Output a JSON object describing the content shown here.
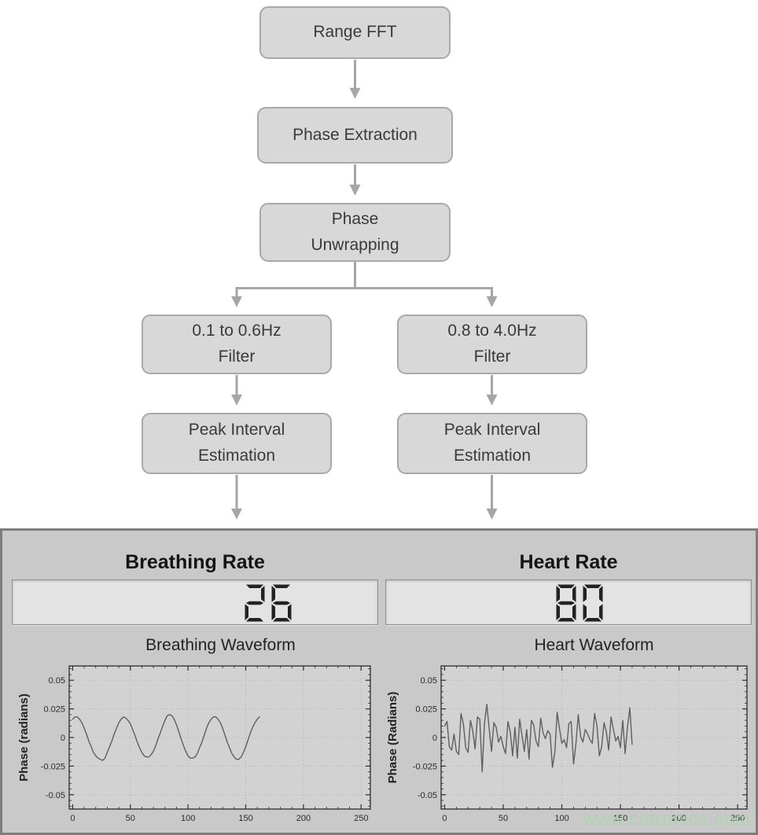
{
  "flowchart": {
    "arrow_color": "#a6a6a6",
    "box_fill": "#d8d8d8",
    "box_border": "#a9a9a9",
    "nodes": [
      {
        "id": "range-fft",
        "label": "Range FFT"
      },
      {
        "id": "phase-extraction",
        "label": "Phase Extraction"
      },
      {
        "id": "phase-unwrapping",
        "label": "Phase\nUnwrapping"
      },
      {
        "id": "breath-filter",
        "label": "0.1 to 0.6Hz\nFilter"
      },
      {
        "id": "heart-filter",
        "label": "0.8 to 4.0Hz\nFilter"
      },
      {
        "id": "breath-peak",
        "label": "Peak Interval\nEstimation"
      },
      {
        "id": "heart-peak",
        "label": "Peak Interval\nEstimation"
      }
    ]
  },
  "panel": {
    "background": "#c9c9c9",
    "border_color": "#7d7d7d",
    "lcd_background": "#e3e3e3",
    "lcd_digit_color": "#222222",
    "columns": [
      {
        "title": "Breathing Rate",
        "display_value": "26"
      },
      {
        "title": "Heart Rate",
        "display_value": "80"
      }
    ]
  },
  "watermark": {
    "text": "www.cntronics.com",
    "color": "#a8d8a8"
  },
  "chart_data": [
    {
      "type": "line",
      "title": "Breathing Waveform",
      "xlabel": "",
      "ylabel": "Phase (radians)",
      "xlim": [
        -3,
        258
      ],
      "ylim": [
        -0.0625,
        0.0625
      ],
      "xticks": [
        0,
        50,
        100,
        150,
        200,
        250
      ],
      "yticks": [
        -0.05,
        -0.025,
        0,
        0.025,
        0.05
      ],
      "ytick_labels": [
        "-0.05",
        "-0.025",
        "0",
        "0.025",
        "0.05"
      ],
      "x_minor_step": 10,
      "y_minor_step": 0.005,
      "grid": "dotted",
      "line_color": "#5f5f5f",
      "x_start": 0,
      "x_step": 2,
      "values": [
        0.016,
        0.018,
        0.018,
        0.016,
        0.013,
        0.008,
        0.003,
        -0.003,
        -0.008,
        -0.013,
        -0.016,
        -0.018,
        -0.019,
        -0.02,
        -0.018,
        -0.013,
        -0.008,
        -0.003,
        0.003,
        0.008,
        0.013,
        0.016,
        0.018,
        0.017,
        0.015,
        0.012,
        0.007,
        0.002,
        -0.004,
        -0.009,
        -0.013,
        -0.016,
        -0.017,
        -0.017,
        -0.015,
        -0.012,
        -0.007,
        -0.001,
        0.004,
        0.01,
        0.015,
        0.019,
        0.02,
        0.019,
        0.016,
        0.011,
        0.005,
        -0.001,
        -0.007,
        -0.012,
        -0.016,
        -0.018,
        -0.018,
        -0.017,
        -0.014,
        -0.009,
        -0.004,
        0.002,
        0.008,
        0.013,
        0.016,
        0.018,
        0.018,
        0.016,
        0.013,
        0.008,
        0.002,
        -0.004,
        -0.009,
        -0.014,
        -0.017,
        -0.019,
        -0.019,
        -0.017,
        -0.013,
        -0.008,
        -0.002,
        0.004,
        0.009,
        0.013,
        0.016,
        0.018
      ]
    },
    {
      "type": "line",
      "title": "Heart Waveform",
      "xlabel": "",
      "ylabel": "Phase (Radians)",
      "xlim": [
        -3,
        258
      ],
      "ylim": [
        -0.0625,
        0.0625
      ],
      "xticks": [
        0,
        50,
        100,
        150,
        200,
        250
      ],
      "yticks": [
        -0.05,
        -0.025,
        0,
        0.025,
        0.05
      ],
      "ytick_labels": [
        "-0.05",
        "-0.025",
        "0",
        "0.025",
        "0.05"
      ],
      "x_minor_step": 10,
      "y_minor_step": 0.005,
      "grid": "dotted",
      "line_color": "#5f5f5f",
      "x_start": 0,
      "x_step": 2,
      "values": [
        0.01,
        0.014,
        -0.008,
        -0.011,
        0.003,
        -0.012,
        -0.015,
        0.021,
        0.012,
        -0.009,
        -0.013,
        0.015,
        0.006,
        -0.01,
        0.018,
        0.016,
        -0.03,
        0.012,
        0.029,
        0.008,
        -0.012,
        0.013,
        0.009,
        -0.004,
        0.001,
        -0.008,
        -0.014,
        0.014,
        0.005,
        -0.016,
        0.009,
        -0.018,
        0.016,
        0.002,
        -0.012,
        0.007,
        -0.019,
        0.015,
        0.011,
        -0.003,
        -0.008,
        0.017,
        0.004,
        -0.001,
        0.006,
        0.003,
        -0.026,
        -0.013,
        0.022,
        0.008,
        -0.005,
        -0.002,
        -0.009,
        0.012,
        0.014,
        -0.023,
        -0.006,
        0.02,
        0.001,
        -0.004,
        0.007,
        0.003,
        -0.002,
        -0.005,
        0.021,
        0.01,
        -0.016,
        -0.008,
        0.013,
        0.005,
        -0.011,
        0.018,
        0.007,
        -0.003,
        0.001,
        -0.009,
        0.015,
        -0.014,
        0.009,
        0.026,
        -0.006
      ]
    }
  ]
}
